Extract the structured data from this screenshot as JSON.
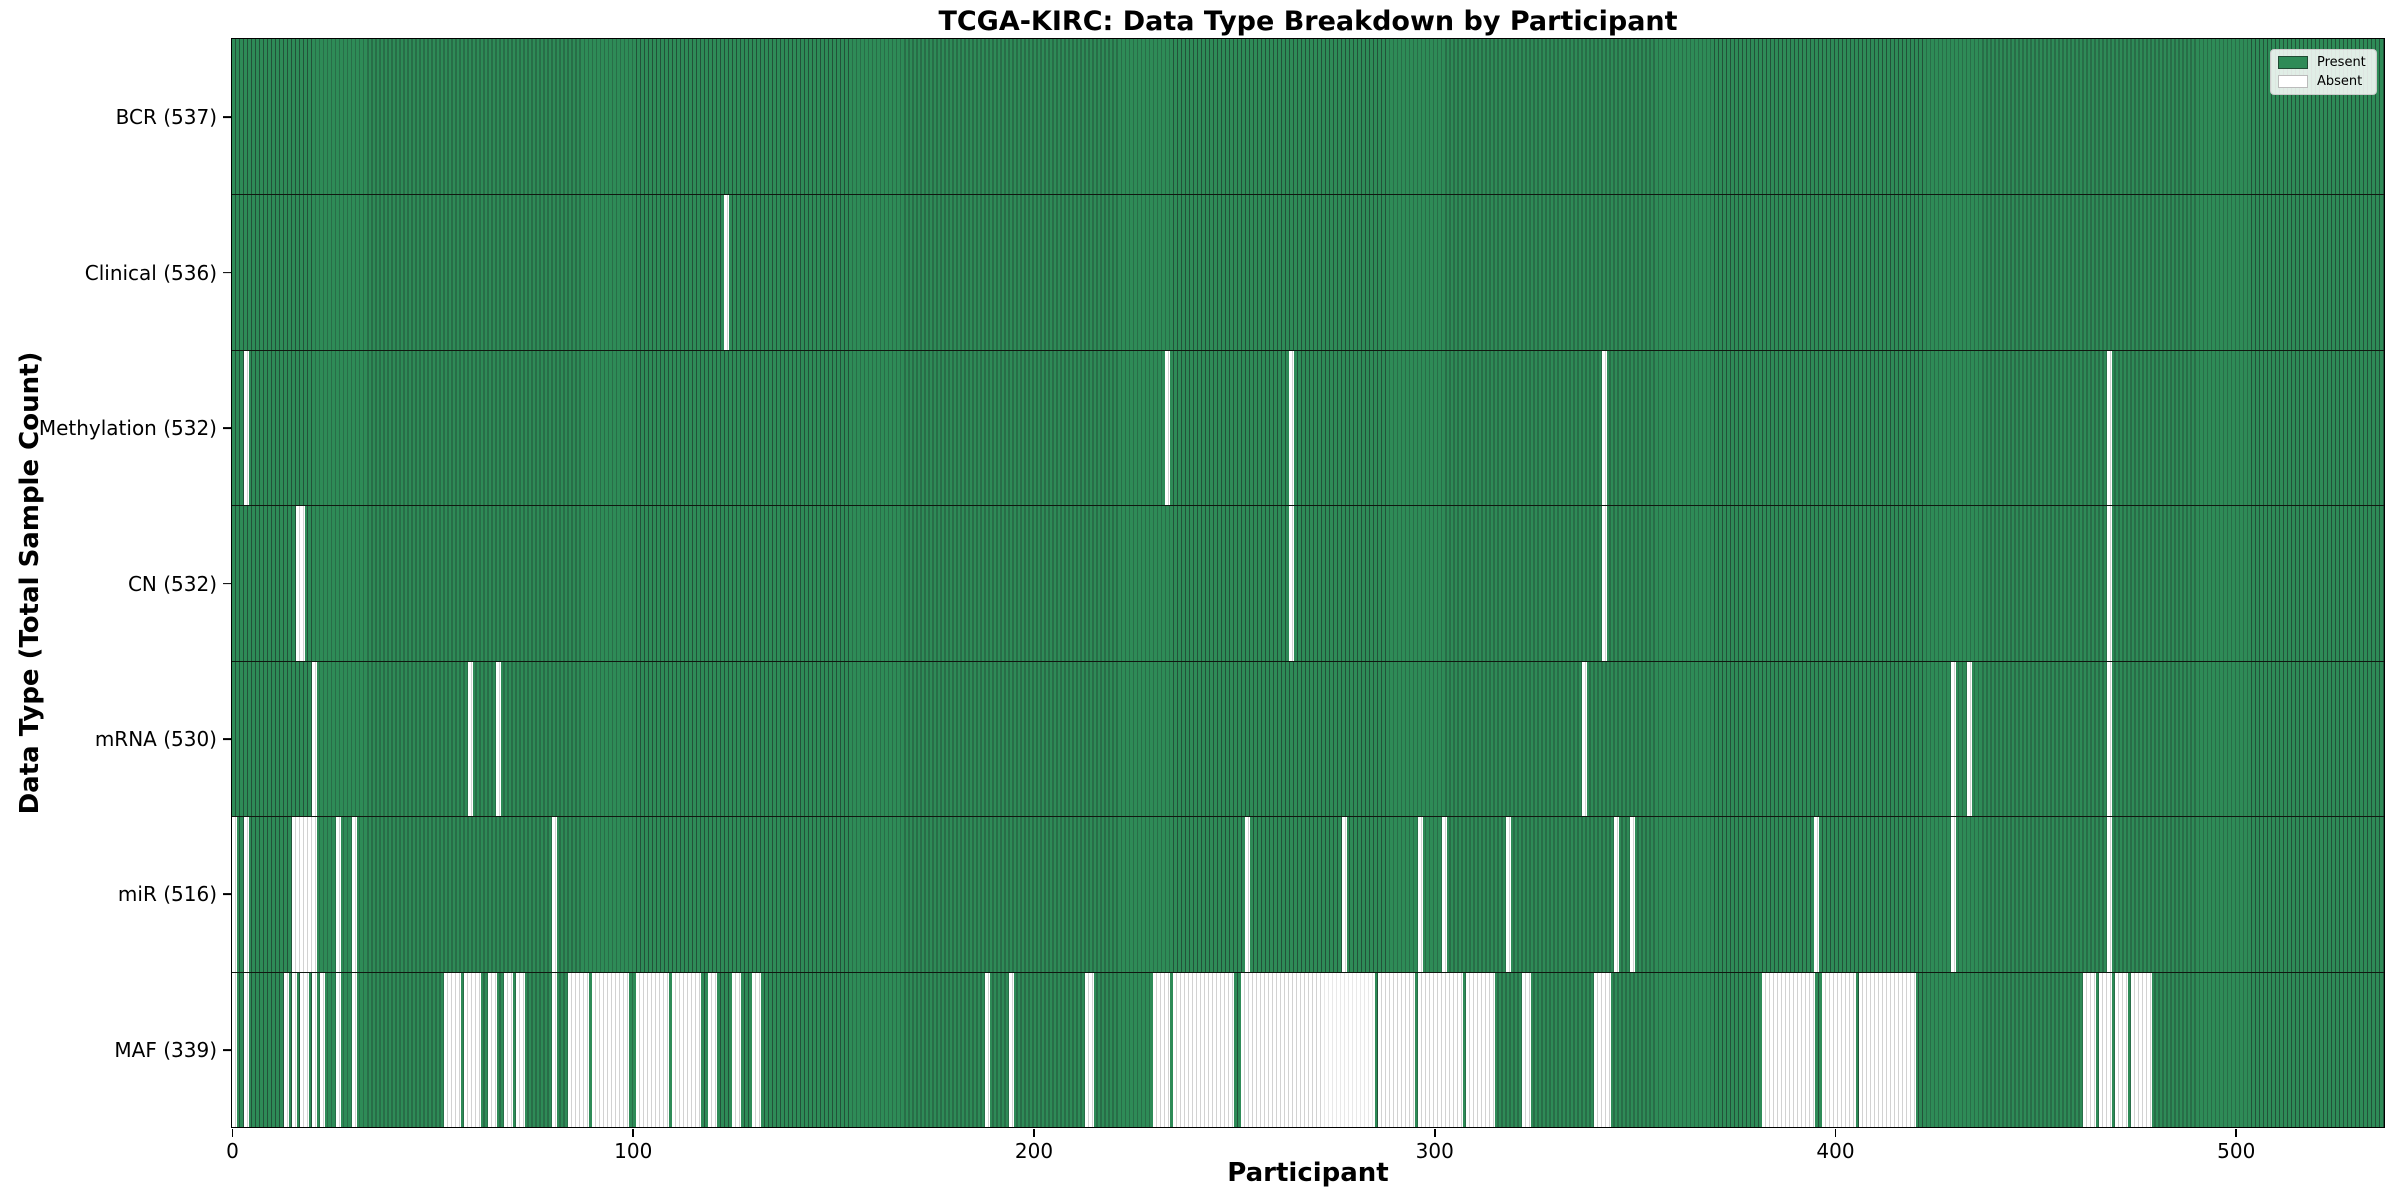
{
  "chart_data": {
    "type": "heatmap",
    "title": "TCGA-KIRC: Data Type Breakdown by Participant",
    "xlabel": "Participant",
    "ylabel": "Data Type (Total Sample Count)",
    "x_ticks": [
      0,
      100,
      200,
      300,
      400,
      500
    ],
    "x_range": [
      0,
      537
    ],
    "n_participants": 537,
    "grid": false,
    "colors": {
      "present_fill": "#2e8b57",
      "present_edge": "#225239",
      "absent_fill": "#ffffff",
      "absent_edge": "#d2d2d2",
      "row_separator": "#101810",
      "plot_border": "#000000"
    },
    "legend": {
      "position": "upper right",
      "entries": [
        {
          "label": "Present",
          "fill": "#2e8b57",
          "edge": "#1f4a33"
        },
        {
          "label": "Absent",
          "fill": "#ffffff",
          "edge": "#bbbbbb"
        }
      ]
    },
    "rows": [
      {
        "label": "BCR (537)",
        "data_type": "BCR",
        "present_count": 537,
        "absent_ranges": []
      },
      {
        "label": "Clinical (536)",
        "data_type": "Clinical",
        "present_count": 536,
        "absent_ranges": [
          [
            123,
            123
          ]
        ]
      },
      {
        "label": "Methylation (532)",
        "data_type": "Methylation",
        "present_count": 532,
        "absent_ranges": [
          [
            3,
            3
          ],
          [
            233,
            233
          ],
          [
            264,
            264
          ],
          [
            342,
            342
          ],
          [
            468,
            468
          ]
        ]
      },
      {
        "label": "CN (532)",
        "data_type": "CN",
        "present_count": 532,
        "absent_ranges": [
          [
            16,
            17
          ],
          [
            264,
            264
          ],
          [
            342,
            342
          ],
          [
            468,
            468
          ]
        ]
      },
      {
        "label": "mRNA (530)",
        "data_type": "mRNA",
        "present_count": 530,
        "absent_ranges": [
          [
            20,
            20
          ],
          [
            59,
            59
          ],
          [
            66,
            66
          ],
          [
            337,
            337
          ],
          [
            429,
            429
          ],
          [
            433,
            433
          ],
          [
            468,
            468
          ]
        ]
      },
      {
        "label": "miR (516)",
        "data_type": "miR",
        "present_count": 516,
        "absent_ranges": [
          [
            0,
            0
          ],
          [
            3,
            3
          ],
          [
            15,
            20
          ],
          [
            26,
            26
          ],
          [
            30,
            30
          ],
          [
            80,
            80
          ],
          [
            253,
            253
          ],
          [
            277,
            277
          ],
          [
            296,
            296
          ],
          [
            302,
            302
          ],
          [
            318,
            318
          ],
          [
            345,
            345
          ],
          [
            349,
            349
          ],
          [
            395,
            395
          ],
          [
            429,
            429
          ],
          [
            468,
            468
          ]
        ]
      },
      {
        "label": "MAF (339)",
        "data_type": "MAF",
        "present_count": 339,
        "absent_ranges": [
          [
            0,
            0
          ],
          [
            3,
            3
          ],
          [
            13,
            13
          ],
          [
            15,
            15
          ],
          [
            17,
            18
          ],
          [
            20,
            20
          ],
          [
            22,
            22
          ],
          [
            26,
            26
          ],
          [
            30,
            30
          ],
          [
            53,
            56
          ],
          [
            58,
            61
          ],
          [
            64,
            65
          ],
          [
            68,
            69
          ],
          [
            71,
            72
          ],
          [
            80,
            80
          ],
          [
            84,
            88
          ],
          [
            90,
            98
          ],
          [
            101,
            108
          ],
          [
            110,
            116
          ],
          [
            119,
            120
          ],
          [
            125,
            126
          ],
          [
            130,
            131
          ],
          [
            188,
            188
          ],
          [
            194,
            194
          ],
          [
            213,
            214
          ],
          [
            230,
            233
          ],
          [
            235,
            249
          ],
          [
            252,
            284
          ],
          [
            286,
            294
          ],
          [
            296,
            306
          ],
          [
            308,
            314
          ],
          [
            322,
            323
          ],
          [
            340,
            343
          ],
          [
            382,
            394
          ],
          [
            397,
            404
          ],
          [
            406,
            419
          ],
          [
            462,
            464
          ],
          [
            466,
            468
          ],
          [
            470,
            472
          ],
          [
            474,
            478
          ]
        ]
      }
    ]
  }
}
